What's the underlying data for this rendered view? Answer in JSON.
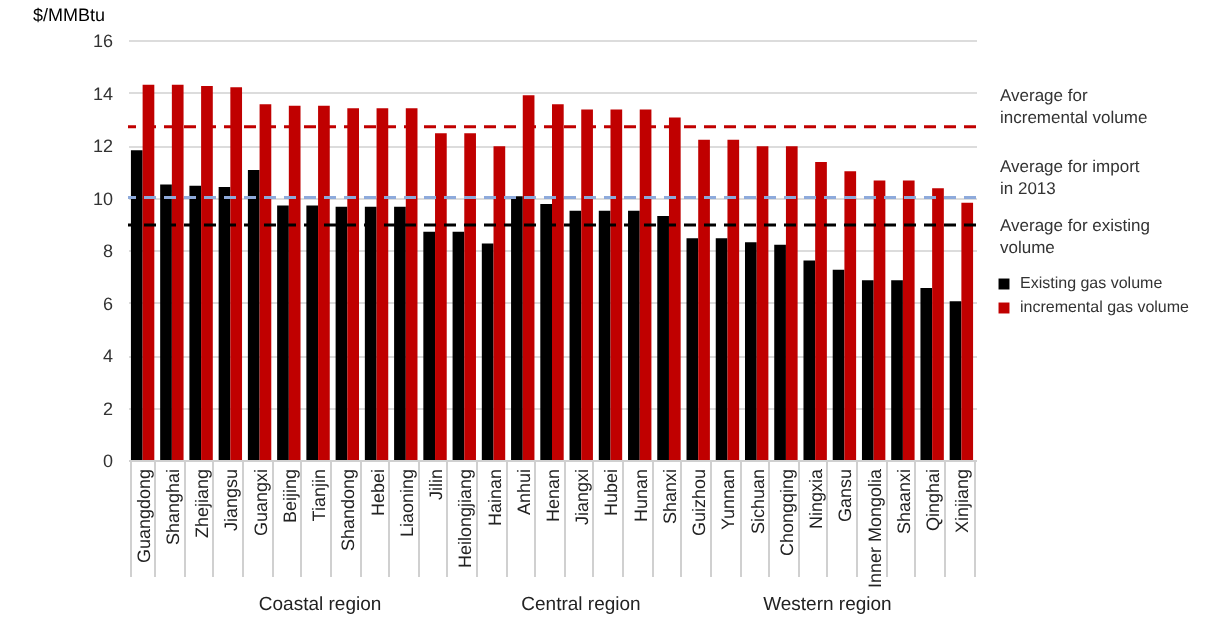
{
  "chart_data": {
    "type": "bar",
    "ylabel": "$/MMBtu",
    "categories": [
      "Guangdong",
      "Shanghai",
      "Zhejiang",
      "Jiangsu",
      "Guangxi",
      "Beijing",
      "Tianjin",
      "Shandong",
      "Hebei",
      "Liaoning",
      "Jilin",
      "Heilongjiang",
      "Hainan",
      "Anhui",
      "Henan",
      "Jiangxi",
      "Hubei",
      "Hunan",
      "Shanxi",
      "Guizhou",
      "Yunnan",
      "Sichuan",
      "Chongqing",
      "Ningxia",
      "Gansu",
      "Inner Mongolia",
      "Shaanxi",
      "Qinghai",
      "Xinjiang"
    ],
    "series": [
      {
        "name": "Existing gas volume",
        "color": "#000000",
        "values": [
          11.8,
          10.5,
          10.45,
          10.4,
          11.05,
          9.7,
          9.7,
          9.65,
          9.65,
          9.65,
          8.7,
          8.7,
          8.25,
          10.05,
          9.75,
          9.5,
          9.5,
          9.5,
          9.3,
          8.45,
          8.45,
          8.3,
          8.2,
          7.6,
          7.25,
          6.85,
          6.85,
          6.55,
          6.05
        ]
      },
      {
        "name": "incremental gas volume",
        "color": "#c00000",
        "values": [
          14.3,
          14.3,
          14.25,
          14.2,
          13.55,
          13.5,
          13.5,
          13.4,
          13.4,
          13.4,
          12.45,
          12.45,
          11.95,
          13.9,
          13.55,
          13.35,
          13.35,
          13.35,
          13.05,
          12.2,
          12.2,
          11.95,
          11.95,
          11.35,
          11.0,
          10.65,
          10.65,
          10.35,
          9.8
        ]
      }
    ],
    "ylim": [
      0,
      16
    ],
    "yticks": [
      0,
      2,
      4,
      6,
      8,
      10,
      12,
      14,
      16
    ],
    "grid": "y",
    "legend": "right",
    "ref_lines": [
      {
        "axis": "y",
        "value": 12.7,
        "label": "Average for incremental volume",
        "color": "#c00000",
        "line_style": "dashed"
      },
      {
        "axis": "y",
        "value": 10.0,
        "label": "Average for import in 2013",
        "color": "#8eaadb",
        "line_style": "dashed"
      },
      {
        "axis": "y",
        "value": 8.95,
        "label": "Average for existing volume",
        "color": "#000000",
        "line_style": "dashed"
      }
    ],
    "annotations": [
      "Coastal region",
      "Central region",
      "Western region"
    ]
  }
}
